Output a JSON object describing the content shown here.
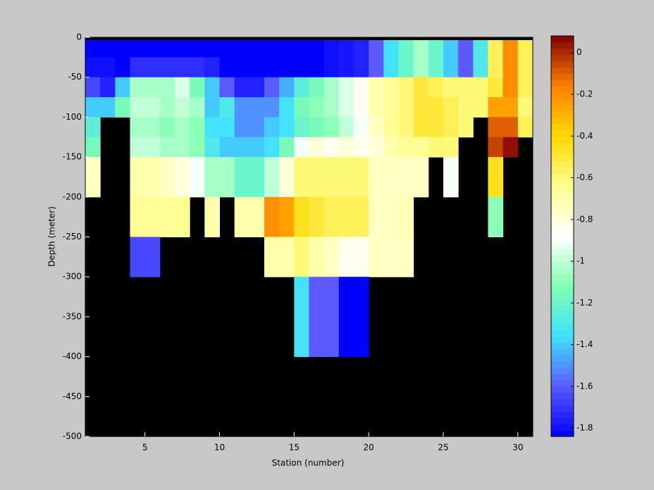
{
  "chart_data": {
    "type": "heatmap",
    "xlabel": "Station (number)",
    "ylabel": "Depth (meter)",
    "x_edges": [
      1,
      2,
      3,
      4,
      5,
      6,
      7,
      8,
      9,
      10,
      11,
      12,
      13,
      14,
      15,
      16,
      17,
      18,
      19,
      20,
      21,
      22,
      23,
      24,
      25,
      26,
      27,
      28,
      29,
      30,
      31
    ],
    "y_edges": [
      -3.5,
      -25,
      -50,
      -75,
      -100,
      -125,
      -150,
      -200,
      -250,
      -300,
      -400
    ],
    "z": [
      [
        -1.84,
        -1.84,
        -1.84,
        -1.84,
        -1.84,
        -1.84,
        -1.84,
        -1.84,
        -1.84,
        -1.84,
        -1.84,
        -1.84,
        -1.84,
        -1.84,
        -1.84,
        -1.84,
        -1.8,
        -1.78,
        -1.75,
        -1.6,
        -1.35,
        -1.2,
        -1.05,
        -1.2,
        -1.4,
        -1.6,
        -1.3,
        -0.55,
        -0.2,
        -0.55
      ],
      [
        -1.8,
        -1.8,
        -1.84,
        -1.72,
        -1.72,
        -1.72,
        -1.72,
        -1.72,
        -1.75,
        -1.84,
        -1.84,
        -1.84,
        -1.84,
        -1.84,
        -1.84,
        -1.84,
        -1.8,
        -1.78,
        -1.75,
        -1.6,
        -1.35,
        -1.2,
        -1.05,
        -1.2,
        -1.4,
        -1.6,
        -1.3,
        -0.55,
        -0.2,
        -0.55
      ],
      [
        -1.65,
        -1.75,
        -1.4,
        -1.05,
        -1.05,
        -1.05,
        -0.95,
        -1.15,
        -1.4,
        -1.6,
        -1.75,
        -1.75,
        -1.6,
        -1.45,
        -1.25,
        -1.15,
        -1.05,
        -0.95,
        -0.85,
        -0.7,
        -0.65,
        -0.6,
        -0.5,
        -0.55,
        -0.6,
        -0.6,
        -0.6,
        -0.5,
        -0.2,
        -0.55
      ],
      [
        -1.4,
        -1.4,
        -1.15,
        -1.0,
        -1.0,
        -1.05,
        -1.0,
        -1.05,
        -1.4,
        -1.3,
        -1.5,
        -1.5,
        -1.5,
        -1.35,
        -1.15,
        -1.1,
        -1.05,
        -0.95,
        -0.85,
        -0.7,
        -0.65,
        -0.6,
        -0.5,
        -0.5,
        -0.55,
        -0.6,
        -0.6,
        -0.25,
        -0.25,
        -0.6
      ],
      [
        -1.25,
        null,
        null,
        -1.05,
        -1.05,
        -1.1,
        -1.05,
        -1.1,
        -1.35,
        -1.35,
        -1.5,
        -1.5,
        -1.4,
        -1.35,
        -1.2,
        -1.15,
        -1.1,
        -1.0,
        -0.9,
        -0.75,
        -0.65,
        -0.6,
        -0.5,
        -0.5,
        -0.55,
        -0.6,
        null,
        -0.1,
        -0.1,
        -0.55
      ],
      [
        -1.15,
        null,
        null,
        -1.0,
        -1.0,
        -1.05,
        -1.05,
        -1.1,
        -1.3,
        -1.4,
        -1.4,
        -1.4,
        -1.35,
        -1.15,
        -0.9,
        -0.8,
        -0.85,
        -0.8,
        -0.85,
        -0.8,
        -0.7,
        -0.65,
        -0.65,
        -0.6,
        -0.6,
        null,
        null,
        -0.05,
        0.05,
        null
      ],
      [
        -0.75,
        null,
        null,
        -0.7,
        -0.7,
        -0.75,
        -0.8,
        -0.9,
        -1.05,
        -1.05,
        -1.2,
        -1.2,
        -1.0,
        -0.8,
        -0.6,
        -0.6,
        -0.6,
        -0.6,
        -0.6,
        -0.75,
        -0.75,
        -0.75,
        -0.75,
        null,
        -0.9,
        null,
        null,
        -0.45,
        null,
        null
      ],
      [
        null,
        null,
        null,
        -0.65,
        -0.65,
        -0.65,
        -0.65,
        null,
        -0.7,
        null,
        -0.7,
        -0.7,
        -0.2,
        -0.25,
        -0.45,
        -0.5,
        -0.55,
        -0.55,
        -0.55,
        -0.75,
        -0.75,
        -0.72,
        null,
        null,
        null,
        null,
        null,
        -1.1,
        null,
        null
      ],
      [
        null,
        null,
        null,
        -1.65,
        -1.65,
        null,
        null,
        null,
        null,
        null,
        null,
        null,
        -0.7,
        -0.7,
        -0.6,
        -0.7,
        -0.75,
        -0.85,
        -0.85,
        -0.75,
        -0.75,
        -0.75,
        null,
        null,
        null,
        null,
        null,
        null,
        null,
        null
      ],
      [
        null,
        null,
        null,
        null,
        null,
        null,
        null,
        null,
        null,
        null,
        null,
        null,
        null,
        null,
        -1.35,
        -1.6,
        -1.6,
        -1.84,
        -1.84,
        null,
        null,
        null,
        null,
        null,
        null,
        null,
        null,
        null,
        null,
        null
      ]
    ],
    "xlim": [
      1,
      31
    ],
    "ylim": [
      -500,
      0
    ],
    "clim": [
      -1.84,
      0.08
    ],
    "xticks": [
      5,
      10,
      15,
      20,
      25,
      30
    ],
    "yticks": [
      0,
      -50,
      -100,
      -150,
      -200,
      -250,
      -300,
      -350,
      -400,
      -450,
      -500
    ],
    "cticks": [
      0,
      -0.2,
      -0.4,
      -0.6,
      -0.8,
      -1,
      -1.2,
      -1.4,
      -1.6,
      -1.8
    ],
    "missing_color": "#000000",
    "colormap": [
      "#0000ff",
      "#5a5aff",
      "#40e0ff",
      "#80ffb0",
      "#ffffff",
      "#ffff90",
      "#ffd800",
      "#ff8000",
      "#800000"
    ]
  }
}
